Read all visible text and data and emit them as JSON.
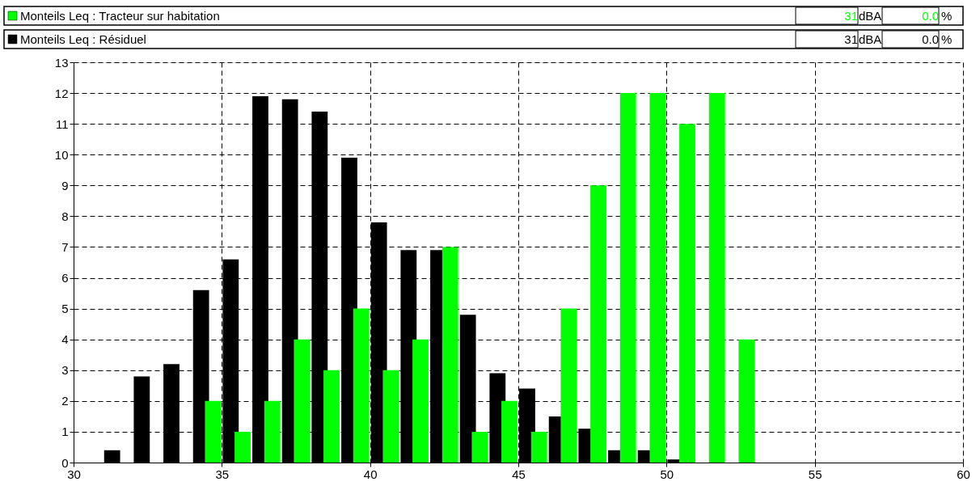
{
  "chart_data": {
    "type": "histogram",
    "bins": [
      31,
      32,
      33,
      34,
      35,
      36,
      37,
      38,
      39,
      40,
      41,
      42,
      43,
      44,
      45,
      46,
      47,
      48,
      49,
      50,
      51,
      52,
      53
    ],
    "series": [
      {
        "name": "Monteils  Leq : Tracteur sur habitation",
        "color": "#00ff00",
        "values": [
          null,
          null,
          null,
          2,
          1,
          2,
          4,
          3,
          5,
          3,
          4,
          7,
          1,
          2,
          1,
          5,
          9,
          12,
          12,
          11,
          12,
          4
        ]
      },
      {
        "name": "Monteils  Leq : Résiduel",
        "color": "#000000",
        "values": [
          0.4,
          2.8,
          3.2,
          5.6,
          6.6,
          11.9,
          11.8,
          11.4,
          9.9,
          7.8,
          6.9,
          6.9,
          4.8,
          2.9,
          2.4,
          1.5,
          1.1,
          0.4,
          0.4,
          0.1,
          null,
          null
        ]
      }
    ],
    "annotations": [
      "31",
      "dBA",
      "0.0",
      "%",
      "31",
      "dBA",
      "0.0",
      "%"
    ],
    "xlim": [
      30,
      60
    ],
    "xticks": [
      30,
      35,
      40,
      45,
      50,
      55,
      60
    ],
    "ylim": [
      0,
      13
    ],
    "yticks": [
      0,
      1,
      2,
      3,
      4,
      5,
      6,
      7,
      8,
      9,
      10,
      11,
      12,
      13
    ],
    "grid": true,
    "legend": "top"
  }
}
